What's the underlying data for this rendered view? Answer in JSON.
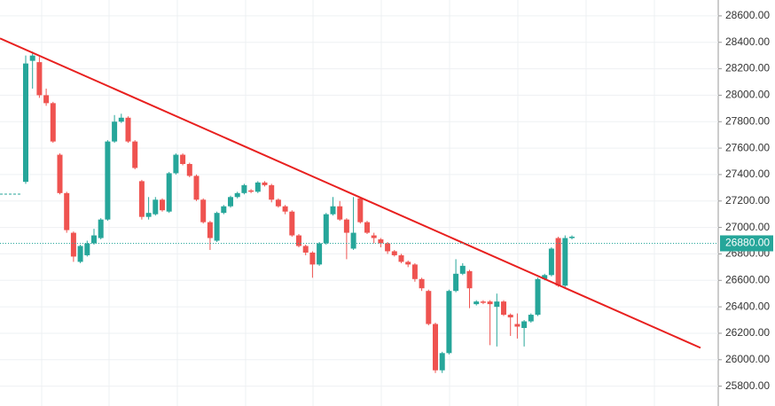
{
  "chart_data": {
    "type": "candlestick",
    "up_color": "#26a69a",
    "down_color": "#ef5350",
    "open": [
      27345,
      28260,
      28250,
      28000,
      27940,
      27550,
      27260,
      26960,
      26740,
      26790,
      26880,
      26920,
      27060,
      27650,
      27800,
      27830,
      27650,
      27350,
      27080,
      27100,
      27210,
      27120,
      27410,
      27550,
      27480,
      27390,
      27210,
      27040,
      26900,
      27110,
      27160,
      27230,
      27260,
      27280,
      27270,
      27340,
      27320,
      27210,
      27160,
      27120,
      26940,
      26860,
      26810,
      26720,
      26880,
      27100,
      27160,
      27060,
      26840,
      27220,
      27040,
      26940,
      26910,
      26880,
      26820,
      26790,
      26740,
      26720,
      26610,
      26520,
      26270,
      25920,
      26050,
      26520,
      26650,
      26670,
      26420,
      26440,
      26440,
      26400,
      26440,
      26340,
      26270,
      26240,
      26290,
      26340,
      26610,
      26640,
      26920,
      26560,
      26920
    ],
    "high": [
      28300,
      28330,
      28290,
      28050,
      27950,
      27560,
      27270,
      26970,
      26870,
      26900,
      26990,
      27070,
      27660,
      27850,
      27860,
      27840,
      27660,
      27360,
      27230,
      27230,
      27220,
      27420,
      27560,
      27560,
      27490,
      27400,
      27220,
      27050,
      27120,
      27170,
      27240,
      27270,
      27330,
      27290,
      27350,
      27350,
      27330,
      27220,
      27170,
      27130,
      26950,
      26870,
      26820,
      26890,
      27110,
      27230,
      27200,
      27070,
      27230,
      27230,
      27050,
      26960,
      26920,
      26890,
      26830,
      26800,
      26750,
      26730,
      26620,
      26530,
      26280,
      26060,
      26530,
      26760,
      26730,
      26680,
      26450,
      26450,
      26450,
      26500,
      26450,
      26350,
      26350,
      26300,
      26350,
      26620,
      26650,
      26850,
      26930,
      26940,
      26940
    ],
    "low": [
      27330,
      28050,
      27980,
      27920,
      27640,
      27250,
      26960,
      26740,
      26730,
      26780,
      26870,
      26910,
      27050,
      27640,
      27790,
      27640,
      27440,
      27060,
      27060,
      27090,
      27120,
      27110,
      27400,
      27470,
      27380,
      27200,
      27030,
      26830,
      26890,
      27100,
      27150,
      27220,
      27250,
      27260,
      27260,
      27310,
      27190,
      27150,
      27100,
      26930,
      26850,
      26790,
      26620,
      26710,
      26870,
      27090,
      27050,
      26760,
      26830,
      27030,
      26950,
      26880,
      26850,
      26800,
      26780,
      26730,
      26700,
      26590,
      26520,
      26260,
      25900,
      25900,
      26040,
      26510,
      26640,
      26390,
      26410,
      26420,
      26110,
      26100,
      26330,
      26180,
      26160,
      26100,
      26280,
      26330,
      26600,
      26630,
      26550,
      26550,
      26910
    ],
    "close": [
      28240,
      28300,
      28000,
      27940,
      27650,
      27260,
      26980,
      26780,
      26860,
      26880,
      26940,
      27060,
      27650,
      27800,
      27830,
      27650,
      27450,
      27080,
      27110,
      27210,
      27130,
      27410,
      27550,
      27480,
      27390,
      27210,
      27040,
      26920,
      27110,
      27160,
      27230,
      27260,
      27320,
      27270,
      27340,
      27320,
      27210,
      27160,
      27120,
      26940,
      26860,
      26810,
      26720,
      26880,
      27100,
      27160,
      27060,
      26960,
      26960,
      27040,
      26960,
      26920,
      26880,
      26820,
      26790,
      26740,
      26720,
      26610,
      26540,
      26270,
      25920,
      26050,
      26520,
      26650,
      26710,
      26540,
      26440,
      26430,
      26420,
      26440,
      26340,
      26320,
      26250,
      26290,
      26340,
      26610,
      26640,
      26840,
      26560,
      26920,
      26930
    ],
    "trendline": {
      "color": "#e8201f",
      "values": [
        28430,
        26090
      ]
    },
    "last_price": {
      "value": 26880,
      "label": "26880.00"
    },
    "ylim": [
      25650,
      28720
    ],
    "yticks": [
      {
        "value": 25800,
        "label": "25800.00"
      },
      {
        "value": 26000,
        "label": "26000.00"
      },
      {
        "value": 26200,
        "label": "26200.00"
      },
      {
        "value": 26400,
        "label": "26400.00"
      },
      {
        "value": 26600,
        "label": "26600.00"
      },
      {
        "value": 26800,
        "label": "26800.00"
      },
      {
        "value": 27000,
        "label": "27000.00"
      },
      {
        "value": 27200,
        "label": "27200.00"
      },
      {
        "value": 27400,
        "label": "27400.00"
      },
      {
        "value": 27600,
        "label": "27600.00"
      },
      {
        "value": 27800,
        "label": "27800.00"
      },
      {
        "value": 28000,
        "label": "28000.00"
      },
      {
        "value": 28200,
        "label": "28200.00"
      },
      {
        "value": 28400,
        "label": "28400.00"
      },
      {
        "value": 28600,
        "label": "28600.00"
      }
    ],
    "grid": true
  }
}
